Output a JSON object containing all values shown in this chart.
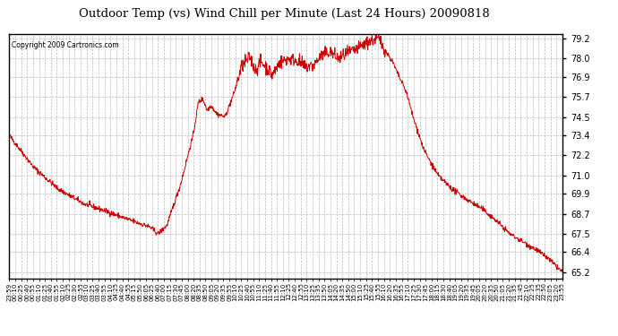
{
  "title": "Outdoor Temp (vs) Wind Chill per Minute (Last 24 Hours) 20090818",
  "copyright": "Copyright 2009 Cartronics.com",
  "line_color": "#cc0000",
  "bg_color": "#ffffff",
  "plot_bg_color": "#ffffff",
  "grid_color": "#bbbbbb",
  "yticks": [
    65.2,
    66.4,
    67.5,
    68.7,
    69.9,
    71.0,
    72.2,
    73.4,
    74.5,
    75.7,
    76.9,
    78.0,
    79.2
  ],
  "ylim": [
    64.8,
    79.5
  ],
  "x_labels": [
    "23:59",
    "00:10",
    "00:25",
    "00:40",
    "00:55",
    "01:10",
    "01:25",
    "01:40",
    "01:55",
    "02:10",
    "02:25",
    "02:30",
    "02:55",
    "03:10",
    "03:25",
    "03:40",
    "03:55",
    "04:10",
    "04:25",
    "04:40",
    "04:55",
    "05:15",
    "05:50",
    "06:05",
    "06:25",
    "06:40",
    "07:00",
    "07:15",
    "07:30",
    "07:45",
    "08:00",
    "08:20",
    "08:35",
    "08:50",
    "09:05",
    "09:20",
    "09:35",
    "09:55",
    "10:10",
    "10:25",
    "10:40",
    "10:55",
    "11:10",
    "11:25",
    "11:40",
    "11:55",
    "12:10",
    "12:25",
    "12:40",
    "12:55",
    "13:10",
    "13:25",
    "13:35",
    "13:50",
    "14:05",
    "14:20",
    "14:35",
    "14:50",
    "15:00",
    "15:10",
    "15:25",
    "15:40",
    "15:55",
    "16:10",
    "16:20",
    "16:35",
    "16:55",
    "17:10",
    "17:25",
    "17:30",
    "17:45",
    "18:00",
    "18:15",
    "18:30",
    "18:40",
    "19:05",
    "19:20",
    "19:35",
    "19:45",
    "20:05",
    "20:20",
    "20:35",
    "20:50",
    "21:05",
    "21:20",
    "21:35",
    "21:45",
    "22:10",
    "22:25",
    "22:35",
    "22:50",
    "23:05",
    "23:20",
    "23:55"
  ],
  "keypoints_x": [
    0.0,
    0.044,
    0.088,
    0.135,
    0.18,
    0.22,
    0.255,
    0.269,
    0.285,
    0.31,
    0.333,
    0.342,
    0.35,
    0.358,
    0.365,
    0.375,
    0.39,
    0.405,
    0.42,
    0.435,
    0.445,
    0.455,
    0.465,
    0.475,
    0.49,
    0.505,
    0.52,
    0.535,
    0.55,
    0.565,
    0.58,
    0.595,
    0.61,
    0.625,
    0.64,
    0.655,
    0.668,
    0.68,
    0.693,
    0.705,
    0.718,
    0.73,
    0.75,
    0.775,
    0.8,
    0.83,
    0.855,
    0.88,
    0.905,
    0.93,
    0.955,
    0.975,
    1.0
  ],
  "keypoints_y": [
    73.4,
    71.5,
    70.2,
    69.3,
    68.8,
    68.3,
    67.9,
    67.5,
    68.0,
    70.5,
    73.5,
    75.4,
    75.6,
    74.9,
    75.2,
    74.7,
    74.5,
    75.8,
    77.5,
    78.1,
    77.3,
    77.8,
    77.5,
    77.0,
    77.8,
    78.0,
    77.9,
    77.5,
    77.6,
    78.2,
    78.4,
    78.0,
    78.3,
    78.5,
    78.8,
    79.1,
    79.2,
    78.5,
    77.8,
    76.9,
    76.0,
    74.5,
    72.5,
    71.0,
    70.2,
    69.5,
    69.0,
    68.3,
    67.5,
    67.0,
    66.5,
    66.0,
    65.2
  ]
}
